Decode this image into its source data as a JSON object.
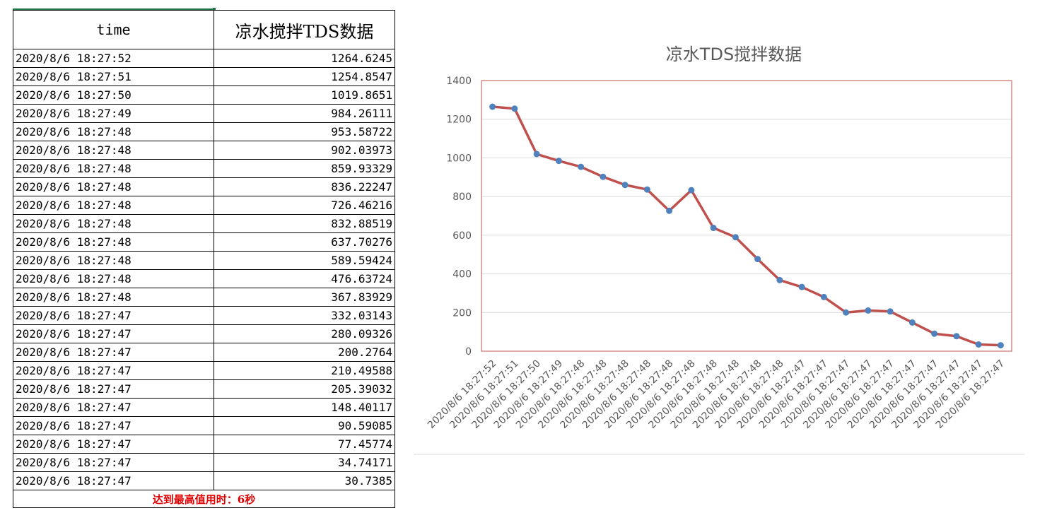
{
  "table": {
    "headers": [
      "time",
      "凉水搅拌TDS数据"
    ],
    "rows": [
      [
        "2020/8/6 18:27:52",
        "1264.6245"
      ],
      [
        "2020/8/6 18:27:51",
        "1254.8547"
      ],
      [
        "2020/8/6 18:27:50",
        "1019.8651"
      ],
      [
        "2020/8/6 18:27:49",
        "984.26111"
      ],
      [
        "2020/8/6 18:27:48",
        "953.58722"
      ],
      [
        "2020/8/6 18:27:48",
        "902.03973"
      ],
      [
        "2020/8/6 18:27:48",
        "859.93329"
      ],
      [
        "2020/8/6 18:27:48",
        "836.22247"
      ],
      [
        "2020/8/6 18:27:48",
        "726.46216"
      ],
      [
        "2020/8/6 18:27:48",
        "832.88519"
      ],
      [
        "2020/8/6 18:27:48",
        "637.70276"
      ],
      [
        "2020/8/6 18:27:48",
        "589.59424"
      ],
      [
        "2020/8/6 18:27:48",
        "476.63724"
      ],
      [
        "2020/8/6 18:27:48",
        "367.83929"
      ],
      [
        "2020/8/6 18:27:47",
        "332.03143"
      ],
      [
        "2020/8/6 18:27:47",
        "280.09326"
      ],
      [
        "2020/8/6 18:27:47",
        "200.2764"
      ],
      [
        "2020/8/6 18:27:47",
        "210.49588"
      ],
      [
        "2020/8/6 18:27:47",
        "205.39032"
      ],
      [
        "2020/8/6 18:27:47",
        "148.40117"
      ],
      [
        "2020/8/6 18:27:47",
        "90.59085"
      ],
      [
        "2020/8/6 18:27:47",
        "77.45774"
      ],
      [
        "2020/8/6 18:27:47",
        "34.74171"
      ],
      [
        "2020/8/6 18:27:47",
        "30.7385"
      ]
    ],
    "footer": "达到最高值用时：6秒"
  },
  "colors": {
    "line": "#c0504d",
    "marker": "#4f81bd",
    "plot_border": "#c0504d",
    "grid": "#d9d9d9",
    "footer_text": "#e00000",
    "selection": "#217346"
  },
  "chart_data": {
    "type": "line",
    "title": "凉水TDS搅拌数据",
    "xlabel": "",
    "ylabel": "",
    "ylim": [
      0,
      1400
    ],
    "yticks": [
      0,
      200,
      400,
      600,
      800,
      1000,
      1200,
      1400
    ],
    "grid": true,
    "categories": [
      "2020/8/6 18:27:52",
      "2020/8/6 18:27:51",
      "2020/8/6 18:27:50",
      "2020/8/6 18:27:49",
      "2020/8/6 18:27:48",
      "2020/8/6 18:27:48",
      "2020/8/6 18:27:48",
      "2020/8/6 18:27:48",
      "2020/8/6 18:27:48",
      "2020/8/6 18:27:48",
      "2020/8/6 18:27:48",
      "2020/8/6 18:27:48",
      "2020/8/6 18:27:48",
      "2020/8/6 18:27:48",
      "2020/8/6 18:27:47",
      "2020/8/6 18:27:47",
      "2020/8/6 18:27:47",
      "2020/8/6 18:27:47",
      "2020/8/6 18:27:47",
      "2020/8/6 18:27:47",
      "2020/8/6 18:27:47",
      "2020/8/6 18:27:47",
      "2020/8/6 18:27:47",
      "2020/8/6 18:27:47"
    ],
    "values": [
      1264.6245,
      1254.8547,
      1019.8651,
      984.26111,
      953.58722,
      902.03973,
      859.93329,
      836.22247,
      726.46216,
      832.88519,
      637.70276,
      589.59424,
      476.63724,
      367.83929,
      332.03143,
      280.09326,
      200.2764,
      210.49588,
      205.39032,
      148.40117,
      90.59085,
      77.45774,
      34.74171,
      30.7385
    ]
  }
}
